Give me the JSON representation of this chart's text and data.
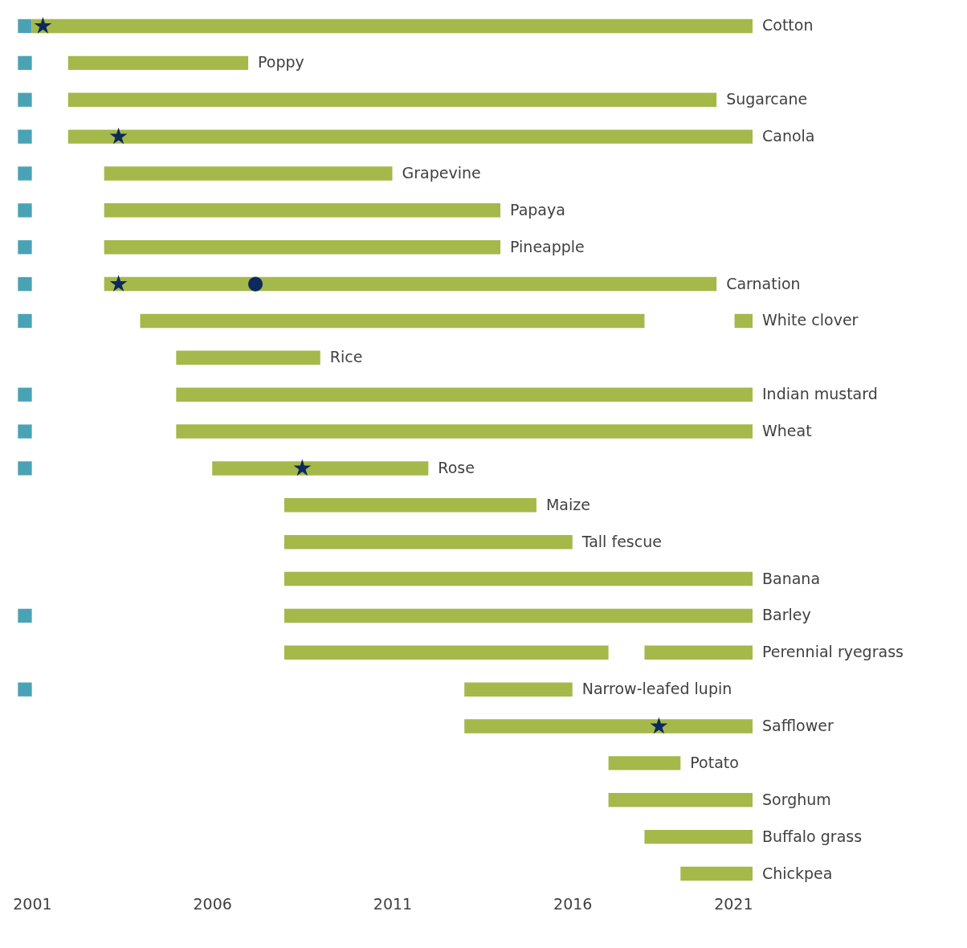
{
  "chart_data": {
    "type": "bar",
    "orientation": "horizontal",
    "categories": [
      "Cotton",
      "Poppy",
      "Sugarcane",
      "Canola",
      "Grapevine",
      "Papaya",
      "Pineapple",
      "Carnation",
      "White clover",
      "Rice",
      "Indian mustard",
      "Wheat",
      "Rose",
      "Maize",
      "Tall fescue",
      "Banana",
      "Barley",
      "Perennial ryegrass",
      "Narrow-leafed lupin",
      "Safflower",
      "Potato",
      "Sorghum",
      "Buffalo grass",
      "Chickpea"
    ],
    "series": [
      {
        "color": "#a5b84a",
        "base": [
          2001,
          2002,
          2002,
          2002,
          2003,
          2003,
          2003,
          2003,
          2004,
          2005,
          2005,
          2005,
          2006,
          2008,
          2008,
          2008,
          2008,
          2008,
          2013,
          2013,
          2017,
          2017,
          2018,
          2019
        ],
        "values": [
          20,
          5,
          18,
          19,
          8,
          11,
          11,
          17,
          14,
          4,
          16,
          16,
          6,
          7,
          8,
          13,
          13,
          9,
          3,
          8,
          2,
          4,
          3,
          2
        ]
      },
      {
        "color": "#a5b84a",
        "base": [
          null,
          null,
          null,
          null,
          null,
          null,
          null,
          null,
          2020.5,
          null,
          null,
          null,
          null,
          null,
          null,
          null,
          null,
          2018,
          null,
          null,
          null,
          null,
          null,
          null
        ],
        "values": [
          null,
          null,
          null,
          null,
          null,
          null,
          null,
          null,
          0.5,
          null,
          null,
          null,
          null,
          null,
          null,
          null,
          null,
          3,
          null,
          null,
          null,
          null,
          null,
          null
        ]
      },
      {
        "type": "scatter",
        "marker": "square",
        "color": "#4aa3b5",
        "values": [
          2000.8,
          2000.8,
          2000.8,
          2000.8,
          2000.8,
          2000.8,
          2000.8,
          2000.8,
          2000.8,
          null,
          2000.8,
          2000.8,
          2000.8,
          null,
          null,
          null,
          2000.8,
          null,
          2000.8,
          null,
          null,
          null,
          null,
          null
        ]
      },
      {
        "type": "scatter",
        "marker": "star",
        "color": "#0d2a5e",
        "values": [
          2001.3,
          null,
          null,
          2003.4,
          null,
          null,
          null,
          2003.4,
          null,
          null,
          null,
          null,
          2008.5,
          null,
          null,
          null,
          null,
          null,
          null,
          2018.4,
          null,
          null,
          null,
          null
        ]
      },
      {
        "type": "scatter",
        "marker": "circle",
        "color": "#0d2a5e",
        "values": [
          null,
          null,
          null,
          null,
          null,
          null,
          null,
          2007.2,
          null,
          null,
          null,
          null,
          null,
          null,
          null,
          null,
          null,
          null,
          null,
          null,
          null,
          null,
          null,
          null
        ]
      }
    ],
    "xlim": [
      2000.6,
      2021
    ],
    "xticks": [
      2001,
      2006,
      2011,
      2016,
      2021
    ],
    "grid": false,
    "tick_labels": "x"
  }
}
